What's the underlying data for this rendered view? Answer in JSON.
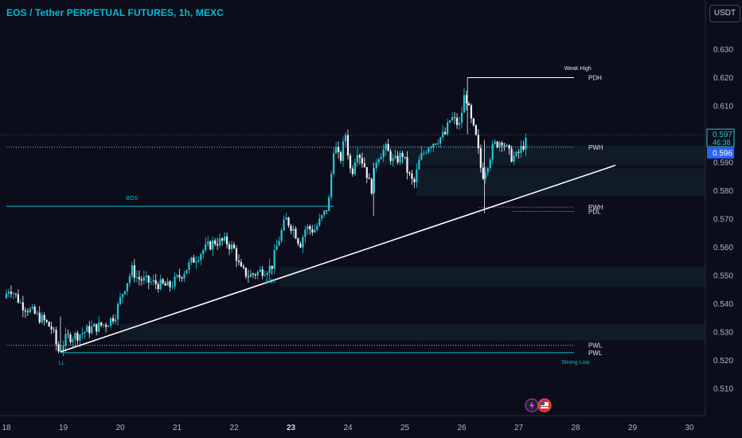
{
  "header": {
    "title": "EOS / Tether PERPETUAL FUTURES, 1h, MEXC",
    "currency_button": "USDT"
  },
  "chart_data": {
    "type": "candlestick",
    "title": "EOS / Tether PERPETUAL FUTURES, 1h, MEXC",
    "ylim": [
      0.502,
      0.642
    ],
    "xlim": [
      18,
      30
    ],
    "y_ticks": [
      "0.630",
      "0.620",
      "0.610",
      "0.600",
      "0.590",
      "0.580",
      "0.570",
      "0.560",
      "0.550",
      "0.540",
      "0.530",
      "0.520",
      "0.510"
    ],
    "y_tick_values": [
      0.63,
      0.62,
      0.61,
      0.6,
      0.59,
      0.58,
      0.57,
      0.56,
      0.55,
      0.54,
      0.53,
      0.52,
      0.51
    ],
    "x_ticks": [
      {
        "label": "18",
        "value": 18,
        "bold": false
      },
      {
        "label": "19",
        "value": 19,
        "bold": false
      },
      {
        "label": "20",
        "value": 20,
        "bold": false
      },
      {
        "label": "21",
        "value": 21,
        "bold": false
      },
      {
        "label": "22",
        "value": 22,
        "bold": false
      },
      {
        "label": "23",
        "value": 23,
        "bold": true
      },
      {
        "label": "24",
        "value": 24,
        "bold": false
      },
      {
        "label": "25",
        "value": 25,
        "bold": false
      },
      {
        "label": "26",
        "value": 26,
        "bold": false
      },
      {
        "label": "27",
        "value": 27,
        "bold": false
      },
      {
        "label": "28",
        "value": 28,
        "bold": false
      },
      {
        "label": "29",
        "value": 29,
        "bold": false
      },
      {
        "label": "30",
        "value": 30,
        "bold": false
      }
    ],
    "price_path": [
      [
        18.0,
        0.542
      ],
      [
        18.1,
        0.546
      ],
      [
        18.3,
        0.54
      ],
      [
        18.5,
        0.537
      ],
      [
        18.7,
        0.534
      ],
      [
        18.85,
        0.531
      ],
      [
        18.95,
        0.523
      ],
      [
        19.1,
        0.528
      ],
      [
        19.3,
        0.529
      ],
      [
        19.5,
        0.531
      ],
      [
        19.8,
        0.533
      ],
      [
        19.95,
        0.536
      ],
      [
        20.1,
        0.545
      ],
      [
        20.25,
        0.552
      ],
      [
        20.35,
        0.549
      ],
      [
        20.5,
        0.548
      ],
      [
        20.7,
        0.547
      ],
      [
        20.9,
        0.546
      ],
      [
        21.1,
        0.55
      ],
      [
        21.3,
        0.555
      ],
      [
        21.5,
        0.559
      ],
      [
        21.7,
        0.562
      ],
      [
        21.9,
        0.562
      ],
      [
        22.05,
        0.559
      ],
      [
        22.15,
        0.552
      ],
      [
        22.3,
        0.55
      ],
      [
        22.45,
        0.551
      ],
      [
        22.55,
        0.552
      ],
      [
        22.7,
        0.553
      ],
      [
        22.8,
        0.561
      ],
      [
        22.95,
        0.57
      ],
      [
        23.1,
        0.566
      ],
      [
        23.2,
        0.561
      ],
      [
        23.3,
        0.567
      ],
      [
        23.45,
        0.566
      ],
      [
        23.6,
        0.571
      ],
      [
        23.7,
        0.575
      ],
      [
        23.8,
        0.597
      ],
      [
        23.9,
        0.59
      ],
      [
        24.0,
        0.6
      ],
      [
        24.1,
        0.585
      ],
      [
        24.2,
        0.595
      ],
      [
        24.35,
        0.588
      ],
      [
        24.45,
        0.58
      ],
      [
        24.55,
        0.592
      ],
      [
        24.7,
        0.595
      ],
      [
        24.85,
        0.59
      ],
      [
        25.0,
        0.593
      ],
      [
        25.1,
        0.586
      ],
      [
        25.2,
        0.582
      ],
      [
        25.3,
        0.591
      ],
      [
        25.45,
        0.596
      ],
      [
        25.6,
        0.598
      ],
      [
        25.75,
        0.6
      ],
      [
        25.85,
        0.606
      ],
      [
        26.0,
        0.603
      ],
      [
        26.1,
        0.615
      ],
      [
        26.2,
        0.605
      ],
      [
        26.3,
        0.598
      ],
      [
        26.4,
        0.585
      ],
      [
        26.5,
        0.59
      ],
      [
        26.6,
        0.596
      ],
      [
        26.75,
        0.598
      ],
      [
        26.9,
        0.592
      ],
      [
        27.0,
        0.592
      ],
      [
        27.15,
        0.597
      ]
    ],
    "last_price": {
      "label": "0.597",
      "value": 0.597,
      "countdown": "46:38"
    },
    "bid_price": {
      "label": "0.596",
      "value": 0.596
    },
    "trendline": {
      "from": [
        18.95,
        0.523
      ],
      "to": [
        28.7,
        0.589
      ]
    },
    "horizontal_levels": [
      {
        "name": "PDH",
        "label": "PDH",
        "value": 0.62,
        "from": 26.1,
        "to": 27.97,
        "style": "solid",
        "color": "#ffffff"
      },
      {
        "name": "PWH",
        "label": "PWH",
        "value": 0.5954,
        "from": 18.0,
        "to": 27.97,
        "style": "dotted",
        "color": "#c9ccd6"
      },
      {
        "name": "BOS",
        "label": "BOS",
        "value": 0.5745,
        "from": 18.0,
        "to": 23.75,
        "style": "solid",
        "color": "#00bcd4"
      },
      {
        "name": "PWH2",
        "label": "PWH",
        "value": 0.5742,
        "from": 26.3,
        "to": 27.97,
        "style": "dotted",
        "color": "#c9ccd6"
      },
      {
        "name": "PDL",
        "label": "PDL",
        "value": 0.5727,
        "from": 26.9,
        "to": 27.97,
        "style": "dotted",
        "color": "#c9ccd6"
      },
      {
        "name": "PWL",
        "label": "PWL",
        "value": 0.5253,
        "from": 18.0,
        "to": 27.97,
        "style": "dotted",
        "color": "#c9ccd6"
      },
      {
        "name": "PWL2",
        "label": "PWL",
        "value": 0.5227,
        "from": 18.95,
        "to": 27.97,
        "style": "solid",
        "color": "#00bcd4"
      }
    ],
    "annotations": [
      {
        "name": "weak-high",
        "text": "Weak High",
        "x": 27.8,
        "y": 0.6227
      },
      {
        "name": "strong-low",
        "text": "Strong Low",
        "x": 27.75,
        "y": 0.5188
      },
      {
        "name": "bos",
        "text": "BOS",
        "x": 20.1,
        "y": 0.5768
      },
      {
        "name": "eql",
        "text": "EQL",
        "x": 22.55,
        "y": 0.5475
      },
      {
        "name": "ll",
        "text": "LL",
        "x": 18.92,
        "y": 0.5185
      }
    ],
    "zones": [
      {
        "from_x": 24.0,
        "to_x": 30,
        "y_top": 0.596,
        "y_bottom": 0.589
      },
      {
        "from_x": 25.2,
        "to_x": 30,
        "y_top": 0.588,
        "y_bottom": 0.578
      },
      {
        "from_x": 22.8,
        "to_x": 30,
        "y_top": 0.553,
        "y_bottom": 0.546
      },
      {
        "from_x": 20.0,
        "to_x": 30,
        "y_top": 0.533,
        "y_bottom": 0.527
      }
    ],
    "grid": false
  },
  "icons": {
    "lightning": "lightning-icon",
    "flag": "us-flag-icon"
  }
}
